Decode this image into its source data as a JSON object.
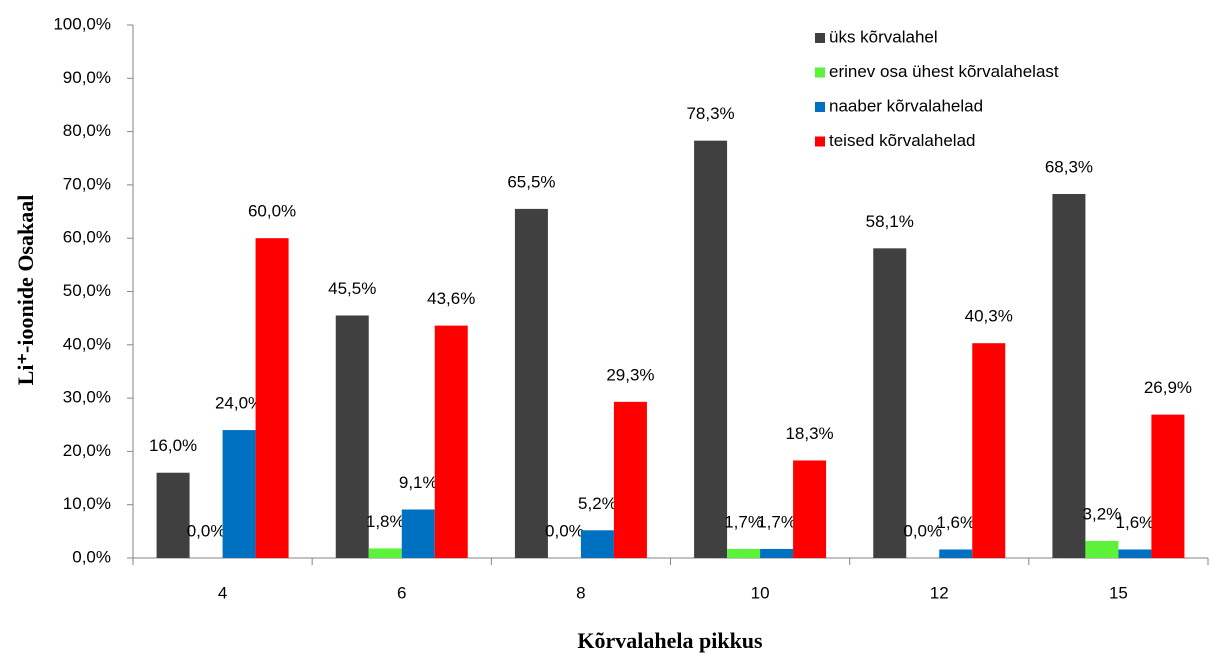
{
  "chart_data": {
    "type": "bar",
    "x_label": "Kõrvalahela pikkus",
    "y_label": "Li⁺-ioonide Osakaal",
    "categories": [
      "4",
      "6",
      "8",
      "10",
      "12",
      "15"
    ],
    "series": [
      {
        "name": "üks kõrvalahel",
        "color": "#404040",
        "values": [
          16.0,
          45.5,
          65.5,
          78.3,
          58.1,
          68.3
        ],
        "value_labels": [
          "16,0%",
          "45,5%",
          "65,5%",
          "78,3%",
          "58,1%",
          "68,3%"
        ]
      },
      {
        "name": "erinev osa ühest kõrvalahelast",
        "color": "#5cf23a",
        "values": [
          0.0,
          1.8,
          0.0,
          1.7,
          0.0,
          3.2
        ],
        "value_labels": [
          "0,0%",
          "1,8%",
          "0,0%",
          "1,7%",
          "0,0%",
          "3,2%"
        ]
      },
      {
        "name": "naaber kõrvalahelad",
        "color": "#0070c0",
        "values": [
          24.0,
          9.1,
          5.2,
          1.7,
          1.6,
          1.6
        ],
        "value_labels": [
          "24,0%",
          "9,1%",
          "5,2%",
          "1,7%",
          "1,6%",
          "1,6%"
        ]
      },
      {
        "name": "teised kõrvalahelad",
        "color": "#ff0000",
        "values": [
          60.0,
          43.6,
          29.3,
          18.3,
          40.3,
          26.9
        ],
        "value_labels": [
          "60,0%",
          "43,6%",
          "29,3%",
          "18,3%",
          "40,3%",
          "26,9%"
        ]
      }
    ],
    "ylim": [
      0,
      100
    ],
    "yticks": [
      {
        "value": 0,
        "label": "0,0%"
      },
      {
        "value": 10,
        "label": "10,0%"
      },
      {
        "value": 20,
        "label": "20,0%"
      },
      {
        "value": 30,
        "label": "30,0%"
      },
      {
        "value": 40,
        "label": "40,0%"
      },
      {
        "value": 50,
        "label": "50,0%"
      },
      {
        "value": 60,
        "label": "60,0%"
      },
      {
        "value": 70,
        "label": "70,0%"
      },
      {
        "value": 80,
        "label": "80,0%"
      },
      {
        "value": 90,
        "label": "90,0%"
      },
      {
        "value": 100,
        "label": "100,0%"
      }
    ],
    "legend": "top-right"
  }
}
